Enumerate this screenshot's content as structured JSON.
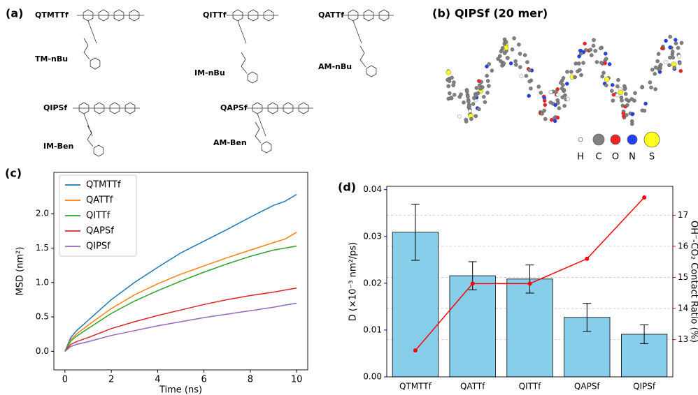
{
  "panel_a": {
    "label": "(a)",
    "compounds": [
      "QTMTTf",
      "QITTf",
      "QATTf",
      "QIPSf",
      "QAPSf"
    ],
    "models": [
      "TM-nBu",
      "IM-nBu",
      "AM-nBu",
      "IM-Ben",
      "AM-Ben"
    ]
  },
  "panel_b": {
    "label": "(b)",
    "title": "QIPSf (20 mer)",
    "atoms": [
      {
        "symbol": "H",
        "color": "#ffffff"
      },
      {
        "symbol": "C",
        "color": "#808080"
      },
      {
        "symbol": "O",
        "color": "#ff2020"
      },
      {
        "symbol": "N",
        "color": "#2040ff"
      },
      {
        "symbol": "S",
        "color": "#ffff20"
      }
    ]
  },
  "chart_data": [
    {
      "type": "line",
      "panel": "(c)",
      "xlabel": "Time (ns)",
      "ylabel": "MSD (nm²)",
      "x": [
        0,
        0.25,
        0.5,
        1,
        2,
        3,
        4,
        5,
        6,
        7,
        8,
        9,
        9.5,
        10
      ],
      "xlim": [
        -0.48,
        10.48
      ],
      "xticks": [
        0,
        2,
        4,
        6,
        8,
        10
      ],
      "ylim": [
        -0.27,
        2.6
      ],
      "yticks": [
        {
          "value": 0,
          "label": "0.0"
        },
        0.5,
        {
          "value": 1,
          "label": "1.0"
        },
        1.5,
        {
          "value": 2,
          "label": "2.0"
        }
      ],
      "legend": "upper left",
      "series": [
        {
          "name": "QTMTTf",
          "color": "#1f77b4",
          "values": [
            0,
            0.2,
            0.3,
            0.45,
            0.75,
            1.0,
            1.22,
            1.43,
            1.6,
            1.77,
            1.95,
            2.12,
            2.18,
            2.28
          ]
        },
        {
          "name": "QATTf",
          "color": "#ff7f0e",
          "values": [
            0,
            0.17,
            0.25,
            0.38,
            0.62,
            0.82,
            0.98,
            1.12,
            1.24,
            1.36,
            1.47,
            1.58,
            1.63,
            1.73
          ]
        },
        {
          "name": "QITTf",
          "color": "#2ca02c",
          "values": [
            0,
            0.15,
            0.22,
            0.33,
            0.55,
            0.73,
            0.88,
            1.02,
            1.15,
            1.27,
            1.38,
            1.47,
            1.5,
            1.53
          ]
        },
        {
          "name": "QAPSf",
          "color": "#d62728",
          "values": [
            0,
            0.1,
            0.14,
            0.2,
            0.33,
            0.43,
            0.52,
            0.6,
            0.68,
            0.75,
            0.81,
            0.86,
            0.89,
            0.92
          ]
        },
        {
          "name": "QIPSf",
          "color": "#9467bd",
          "values": [
            0,
            0.07,
            0.1,
            0.14,
            0.23,
            0.3,
            0.37,
            0.43,
            0.49,
            0.54,
            0.59,
            0.64,
            0.67,
            0.7
          ]
        }
      ]
    },
    {
      "type": "bar",
      "panel": "(d)",
      "ylabel": "D (×10⁻³ nm²/ps)",
      "y2label": "OH⁻-CO₂ Contact Ratio (%)",
      "categories": [
        "QTMTTf",
        "QATTf",
        "QITTf",
        "QAPSf",
        "QIPSf"
      ],
      "ylim": [
        0,
        0.0407
      ],
      "yticks": [
        {
          "value": 0,
          "label": "0.00"
        },
        0.01,
        0.02,
        0.03,
        0.04
      ],
      "ycolor": "#0000ff",
      "y2lim": [
        11.8,
        17.93
      ],
      "y2ticks": [
        13,
        14,
        15,
        16,
        17
      ],
      "y2color": "#ff0000",
      "grid": true,
      "series": [
        {
          "type": "bar",
          "color": "#87ceeb",
          "values": [
            0.0309,
            0.0216,
            0.0209,
            0.0127,
            0.0091
          ],
          "errors": [
            0.006,
            0.003,
            0.003,
            0.003,
            0.002
          ]
        },
        {
          "type": "line",
          "axis": "y2",
          "color": "#ff0000",
          "values": [
            12.65,
            14.8,
            14.8,
            15.6,
            17.57
          ]
        }
      ]
    }
  ]
}
